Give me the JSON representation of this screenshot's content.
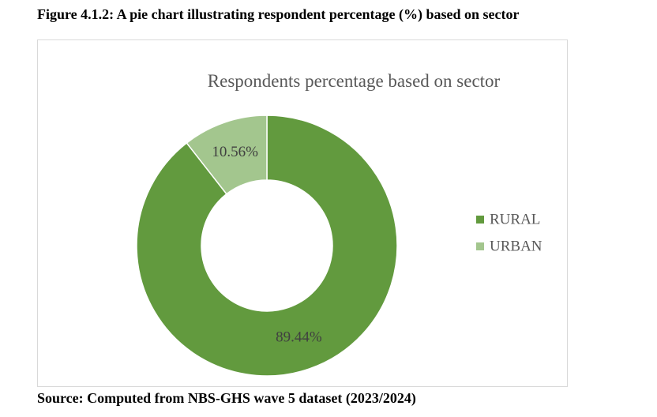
{
  "figure": {
    "caption": "Figure 4.1.2: A pie chart illustrating respondent percentage (%) based on sector",
    "source": "Source: Computed from NBS-GHS wave 5 dataset (2023/2024)"
  },
  "chart_data": {
    "type": "pie",
    "variant": "doughnut",
    "title": "Respondents percentage based on sector",
    "legend_position": "right",
    "slices": [
      {
        "name": "RURAL",
        "value": 89.44,
        "label": "89.44%",
        "color": "#629a3e"
      },
      {
        "name": "URBAN",
        "value": 10.56,
        "label": "10.56%",
        "color": "#a3c68e"
      }
    ]
  }
}
